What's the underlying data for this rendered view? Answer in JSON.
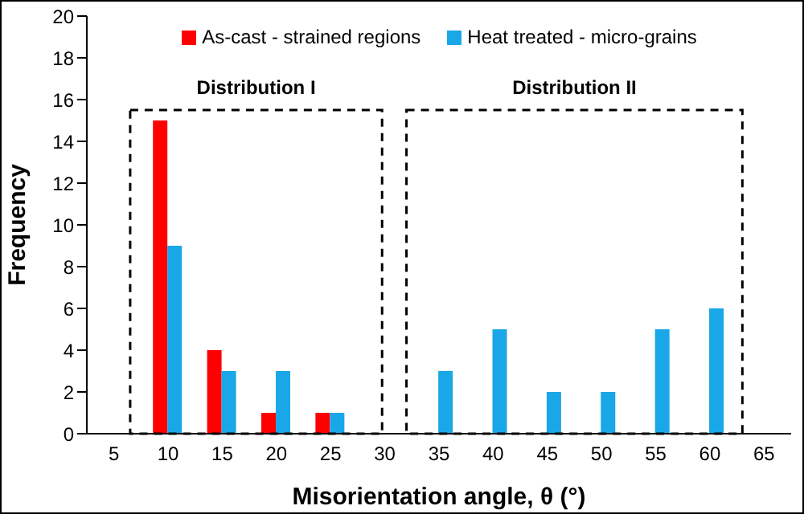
{
  "chart_data": {
    "type": "bar",
    "xlabel": "Misorientation angle, θ (°)",
    "ylabel": "Frequency",
    "categories": [
      "5",
      "10",
      "15",
      "20",
      "25",
      "30",
      "35",
      "40",
      "45",
      "50",
      "55",
      "60",
      "65"
    ],
    "series": [
      {
        "name": "As-cast - strained regions",
        "color": "#ff0000",
        "values": [
          null,
          15,
          4,
          1,
          1,
          null,
          null,
          null,
          null,
          null,
          null,
          null,
          null
        ]
      },
      {
        "name": "Heat treated - micro-grains",
        "color": "#1aa7e8",
        "values": [
          null,
          9,
          3,
          3,
          1,
          null,
          3,
          5,
          2,
          2,
          5,
          6,
          null
        ]
      }
    ],
    "ylim": [
      0,
      20
    ],
    "yticks": [
      0,
      2,
      4,
      6,
      8,
      10,
      12,
      14,
      16,
      18,
      20
    ],
    "legend": "top",
    "annotations": [
      "Distribution I",
      "Distribution II"
    ]
  }
}
